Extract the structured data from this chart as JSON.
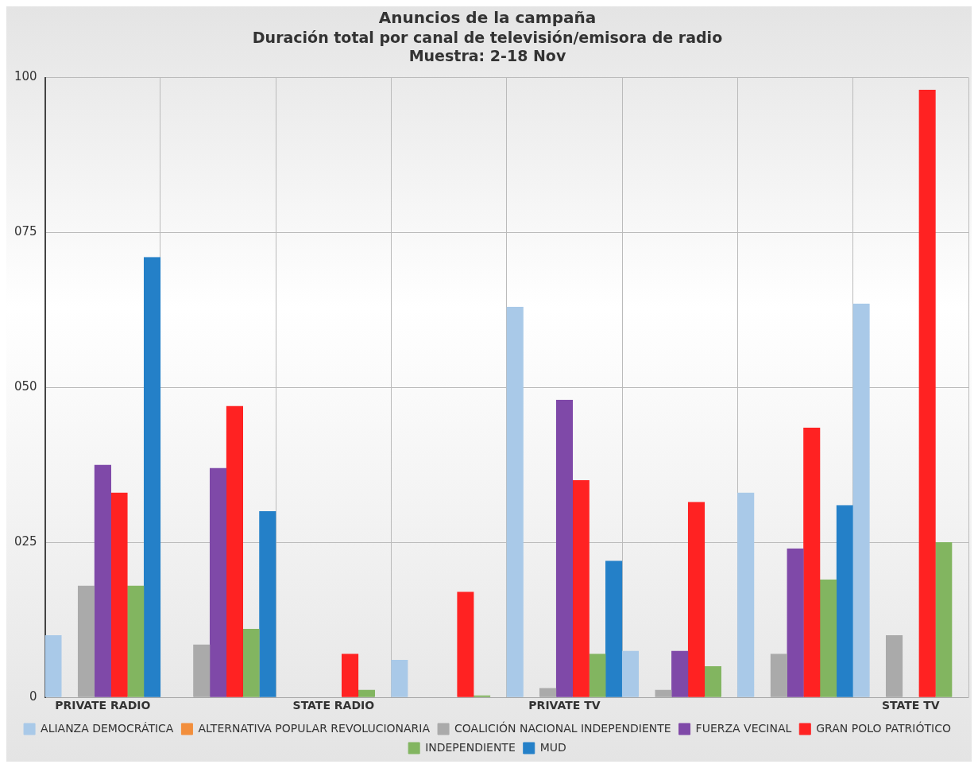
{
  "chart_data": {
    "type": "bar",
    "title": "Anuncios de la campaña",
    "subtitle": "Duración total por canal de televisión/emisora de radio\nMuestra: 2-18 Nov",
    "categories": [
      "PRIVATE RADIO",
      null,
      "STATE RADIO",
      null,
      "PRIVATE TV",
      null,
      null,
      "STATE TV"
    ],
    "series": [
      {
        "name": "ALIANZA DEMOCRÁTICA",
        "color": "#a9c9e8",
        "values": [
          10,
          0,
          0,
          6,
          63,
          7.5,
          33,
          63.5
        ]
      },
      {
        "name": "ALTERNATIVA POPULAR REVOLUCIONARIA",
        "color": "#f28e3c",
        "values": [
          0,
          0,
          0,
          0,
          0,
          0,
          0,
          0
        ]
      },
      {
        "name": "COALICIÓN NACIONAL INDEPENDIENTE",
        "color": "#aaaaaa",
        "values": [
          18,
          8.5,
          0,
          0,
          1.5,
          1.2,
          7,
          10
        ]
      },
      {
        "name": "FUERZA VECINAL",
        "color": "#7f49a8",
        "values": [
          37.5,
          37,
          0,
          0,
          48,
          7.5,
          24,
          0
        ]
      },
      {
        "name": "GRAN POLO PATRIÓTICO",
        "color": "#ff2222",
        "values": [
          33,
          47,
          7,
          17,
          35,
          31.5,
          43.5,
          98
        ]
      },
      {
        "name": "INDEPENDIENTE",
        "color": "#82b560",
        "values": [
          18,
          11,
          1.2,
          0.3,
          7,
          5,
          19,
          25
        ]
      },
      {
        "name": "MUD",
        "color": "#2480c8",
        "values": [
          71,
          30,
          0,
          0,
          22,
          0,
          31,
          0
        ]
      }
    ],
    "ylim": [
      0,
      100
    ],
    "yticks": [
      0,
      {
        "value": 25,
        "label": "025"
      },
      {
        "value": 50,
        "label": "050"
      },
      {
        "value": 75,
        "label": "075"
      },
      100
    ],
    "grid": true,
    "legend": "bottom"
  }
}
